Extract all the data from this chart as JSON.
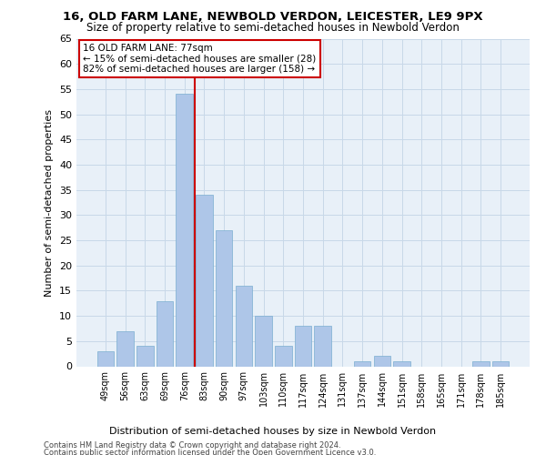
{
  "title": "16, OLD FARM LANE, NEWBOLD VERDON, LEICESTER, LE9 9PX",
  "subtitle": "Size of property relative to semi-detached houses in Newbold Verdon",
  "xlabel": "Distribution of semi-detached houses by size in Newbold Verdon",
  "ylabel": "Number of semi-detached properties",
  "footer1": "Contains HM Land Registry data © Crown copyright and database right 2024.",
  "footer2": "Contains public sector information licensed under the Open Government Licence v3.0.",
  "annotation_title": "16 OLD FARM LANE: 77sqm",
  "annotation_line1": "← 15% of semi-detached houses are smaller (28)",
  "annotation_line2": "82% of semi-detached houses are larger (158) →",
  "bar_color": "#aec6e8",
  "bar_edge_color": "#7aaed0",
  "vline_color": "#cc0000",
  "grid_color": "#c8d8e8",
  "bg_color": "#e8f0f8",
  "categories": [
    "49sqm",
    "56sqm",
    "63sqm",
    "69sqm",
    "76sqm",
    "83sqm",
    "90sqm",
    "97sqm",
    "103sqm",
    "110sqm",
    "117sqm",
    "124sqm",
    "131sqm",
    "137sqm",
    "144sqm",
    "151sqm",
    "158sqm",
    "165sqm",
    "171sqm",
    "178sqm",
    "185sqm"
  ],
  "values": [
    3,
    7,
    4,
    13,
    54,
    34,
    27,
    16,
    10,
    4,
    8,
    8,
    0,
    1,
    2,
    1,
    0,
    0,
    0,
    1,
    1
  ],
  "ylim": [
    0,
    65
  ],
  "yticks": [
    0,
    5,
    10,
    15,
    20,
    25,
    30,
    35,
    40,
    45,
    50,
    55,
    60,
    65
  ],
  "vline_x_index": 4
}
